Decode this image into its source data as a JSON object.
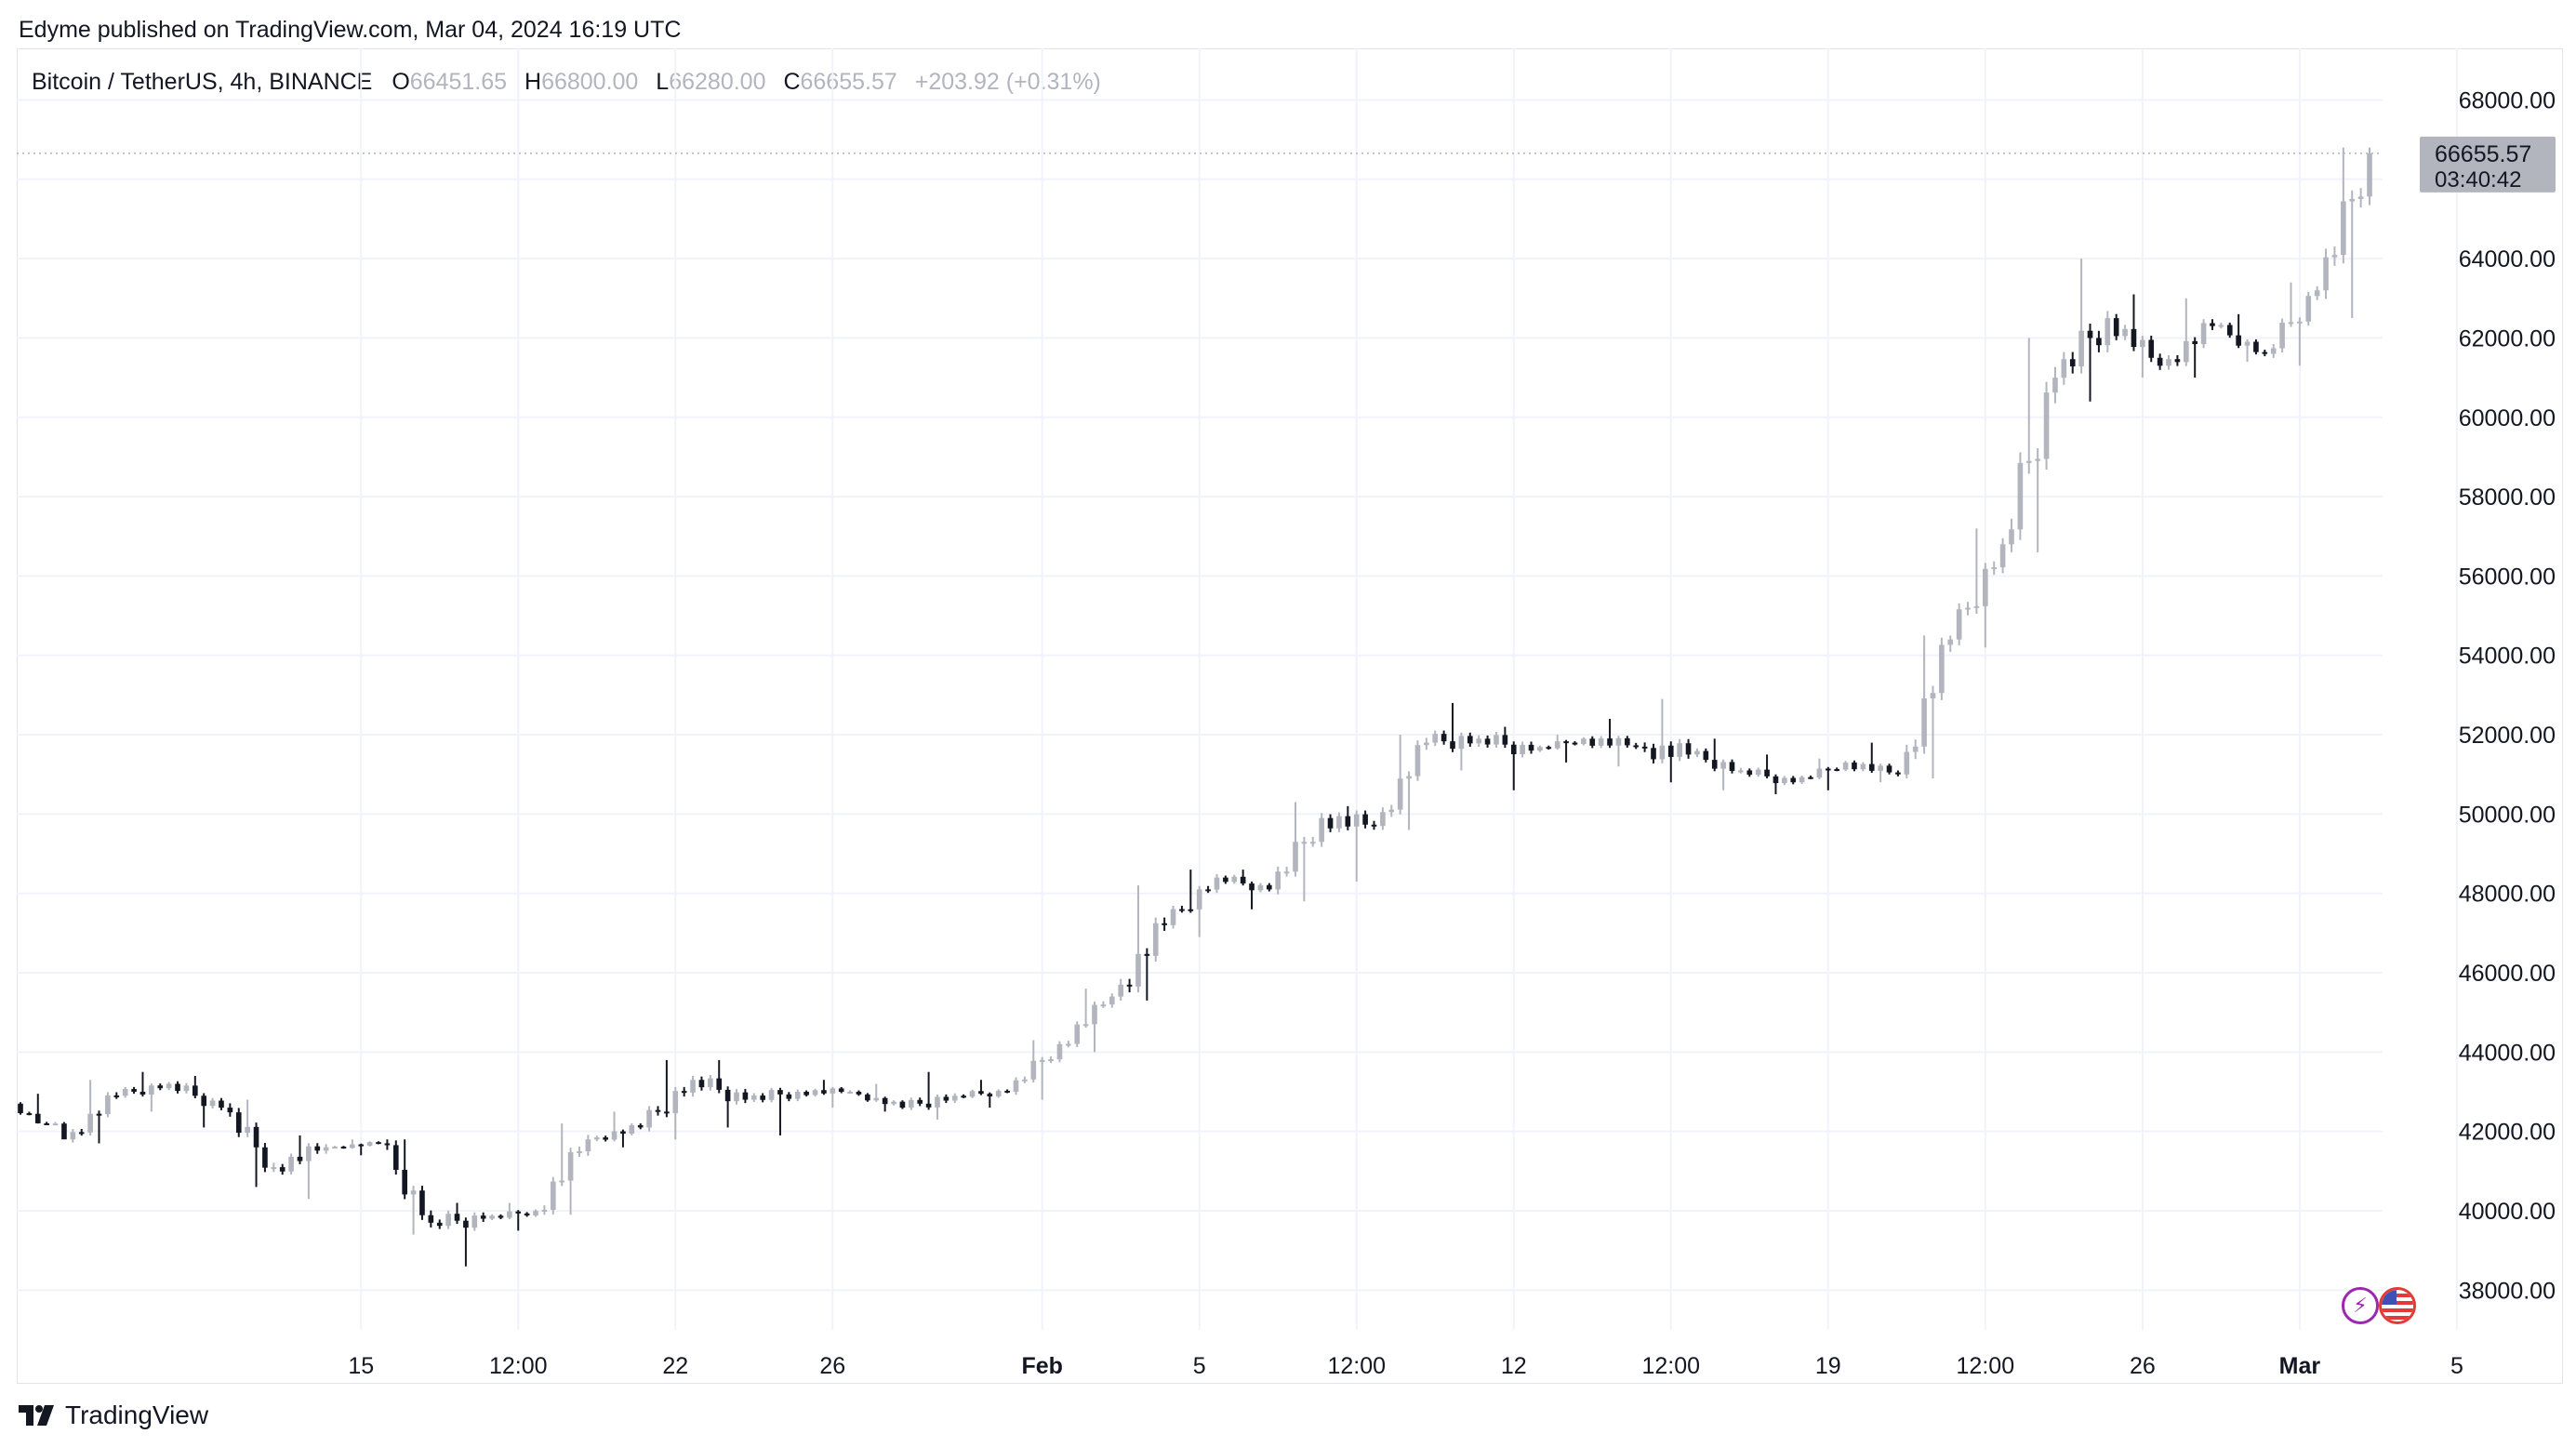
{
  "header": {
    "publisher": "Edyme published on TradingView.com, Mar 04, 2024 16:19 UTC"
  },
  "legend": {
    "symbol": "Bitcoin / TetherUS, 4h, BINANCE",
    "o_label": "O",
    "o_value": "66451.65",
    "h_label": "H",
    "h_value": "66800.00",
    "l_label": "L",
    "l_value": "66280.00",
    "c_label": "C",
    "c_value": "66655.57",
    "change": "+203.92 (+0.31%)"
  },
  "last_price": {
    "price": "66655.57",
    "countdown": "03:40:42"
  },
  "footer": {
    "brand": "TradingView"
  },
  "colors": {
    "up": "#b2b5be",
    "down": "#131722",
    "grid": "#f0f3fa",
    "axis_text": "#131722",
    "price_tag_bg": "#b2b5be"
  },
  "icons": {
    "logo": "tradingview-logo-icon",
    "bolt": "bolt-icon",
    "flag": "us-flag-icon"
  },
  "chart_data": {
    "type": "candlestick",
    "title": "",
    "y_ticks": [
      "68000.00",
      "66000.00",
      "64000.00",
      "62000.00",
      "60000.00",
      "58000.00",
      "56000.00",
      "54000.00",
      "52000.00",
      "50000.00",
      "48000.00",
      "46000.00",
      "44000.00",
      "42000.00",
      "40000.00",
      "38000.00"
    ],
    "ylim": [
      37000,
      69300
    ],
    "x_tick_labels": [
      {
        "label": "15",
        "bold": false,
        "index": 6
      },
      {
        "label": "12:00",
        "bold": false,
        "index": 9
      },
      {
        "label": "22",
        "bold": false,
        "index": 12
      },
      {
        "label": "26",
        "bold": false,
        "index": 15
      },
      {
        "label": "Feb",
        "bold": true,
        "index": 19
      },
      {
        "label": "5",
        "bold": false,
        "index": 22
      },
      {
        "label": "12:00",
        "bold": false,
        "index": 25
      },
      {
        "label": "12",
        "bold": false,
        "index": 28
      },
      {
        "label": "12:00",
        "bold": false,
        "index": 31
      },
      {
        "label": "19",
        "bold": false,
        "index": 34
      },
      {
        "label": "12:00",
        "bold": false,
        "index": 37
      },
      {
        "label": "26",
        "bold": false,
        "index": 40
      },
      {
        "label": "Mar",
        "bold": true,
        "index": 43
      },
      {
        "label": "5",
        "bold": false,
        "index": 46
      }
    ],
    "x_range_note": "4h candles, Jan 14 2024 to Mar 04 2024",
    "daily_closes": [
      [
        42700,
        42950,
        42200,
        41800
      ],
      [
        41800,
        43300,
        41700,
        42900
      ],
      [
        42900,
        43500,
        42500,
        43200
      ],
      [
        43200,
        43400,
        42100,
        42600
      ],
      [
        42600,
        42800,
        40600,
        41100
      ],
      [
        41100,
        41900,
        40300,
        41600
      ],
      [
        41600,
        41800,
        41400,
        41700
      ],
      [
        41700,
        41800,
        39400,
        39700
      ],
      [
        39700,
        40200,
        38600,
        39800
      ],
      [
        39800,
        40200,
        39500,
        40000
      ],
      [
        40000,
        42200,
        39900,
        41800
      ],
      [
        41800,
        42500,
        41600,
        42100
      ],
      [
        42100,
        43800,
        41800,
        43300
      ],
      [
        43300,
        43800,
        42100,
        42800
      ],
      [
        42800,
        43100,
        41900,
        43000
      ],
      [
        43000,
        43300,
        42600,
        43000
      ],
      [
        43000,
        43200,
        42500,
        42600
      ],
      [
        42600,
        43500,
        42300,
        42900
      ],
      [
        42900,
        43300,
        42600,
        43000
      ],
      [
        43000,
        44300,
        42800,
        44200
      ],
      [
        44200,
        45600,
        44000,
        45400
      ],
      [
        45400,
        48200,
        45300,
        47200
      ],
      [
        47200,
        48600,
        46900,
        48400
      ],
      [
        48400,
        48600,
        47600,
        48100
      ],
      [
        48100,
        50300,
        47800,
        49900
      ],
      [
        49900,
        50200,
        48300,
        49700
      ],
      [
        49700,
        52000,
        49600,
        51800
      ],
      [
        51800,
        52800,
        51100,
        51900
      ],
      [
        51900,
        52200,
        50600,
        51600
      ],
      [
        51600,
        52000,
        51300,
        51900
      ],
      [
        51900,
        52400,
        51200,
        51700
      ],
      [
        51700,
        52900,
        50800,
        51500
      ],
      [
        51500,
        51900,
        50600,
        51100
      ],
      [
        51100,
        51500,
        50500,
        50800
      ],
      [
        50800,
        51400,
        50600,
        51300
      ],
      [
        51300,
        51800,
        50800,
        51000
      ],
      [
        51000,
        54500,
        50900,
        54400
      ],
      [
        54400,
        57200,
        54200,
        56800
      ],
      [
        56800,
        62000,
        56600,
        61000
      ],
      [
        61000,
        64000,
        60400,
        62500
      ],
      [
        62500,
        63100,
        61000,
        61300
      ],
      [
        61300,
        63000,
        61000,
        62300
      ],
      [
        62300,
        62600,
        61400,
        61600
      ],
      [
        61600,
        63400,
        61300,
        63200
      ],
      [
        63200,
        66800,
        62500,
        66655.57
      ]
    ]
  }
}
